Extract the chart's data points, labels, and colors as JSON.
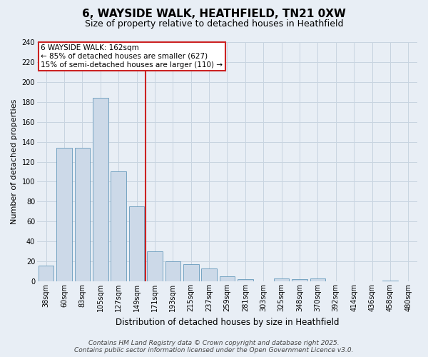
{
  "title_line1": "6, WAYSIDE WALK, HEATHFIELD, TN21 0XW",
  "title_line2": "Size of property relative to detached houses in Heathfield",
  "xlabel": "Distribution of detached houses by size in Heathfield",
  "ylabel": "Number of detached properties",
  "categories": [
    "38sqm",
    "60sqm",
    "83sqm",
    "105sqm",
    "127sqm",
    "149sqm",
    "171sqm",
    "193sqm",
    "215sqm",
    "237sqm",
    "259sqm",
    "281sqm",
    "303sqm",
    "325sqm",
    "348sqm",
    "370sqm",
    "392sqm",
    "414sqm",
    "436sqm",
    "458sqm",
    "480sqm"
  ],
  "values": [
    16,
    134,
    134,
    184,
    110,
    75,
    30,
    20,
    17,
    13,
    5,
    2,
    0,
    3,
    2,
    3,
    0,
    0,
    0,
    1,
    0
  ],
  "bar_color": "#ccd9e8",
  "bar_edge_color": "#6699bb",
  "vline_index": 6,
  "vline_color": "#cc2222",
  "annotation_text": "6 WAYSIDE WALK: 162sqm\n← 85% of detached houses are smaller (627)\n15% of semi-detached houses are larger (110) →",
  "annotation_box_facecolor": "#ffffff",
  "annotation_box_edgecolor": "#cc2222",
  "ylim_max": 240,
  "ytick_step": 20,
  "footer_line1": "Contains HM Land Registry data © Crown copyright and database right 2025.",
  "footer_line2": "Contains public sector information licensed under the Open Government Licence v3.0.",
  "bg_color": "#e8eef5",
  "plot_bg_color": "#e8eef5",
  "grid_color": "#c8d4e0",
  "title_fontsize": 11,
  "subtitle_fontsize": 9,
  "axis_label_fontsize": 8,
  "tick_fontsize": 7,
  "footer_fontsize": 6.5,
  "annotation_fontsize": 7.5
}
